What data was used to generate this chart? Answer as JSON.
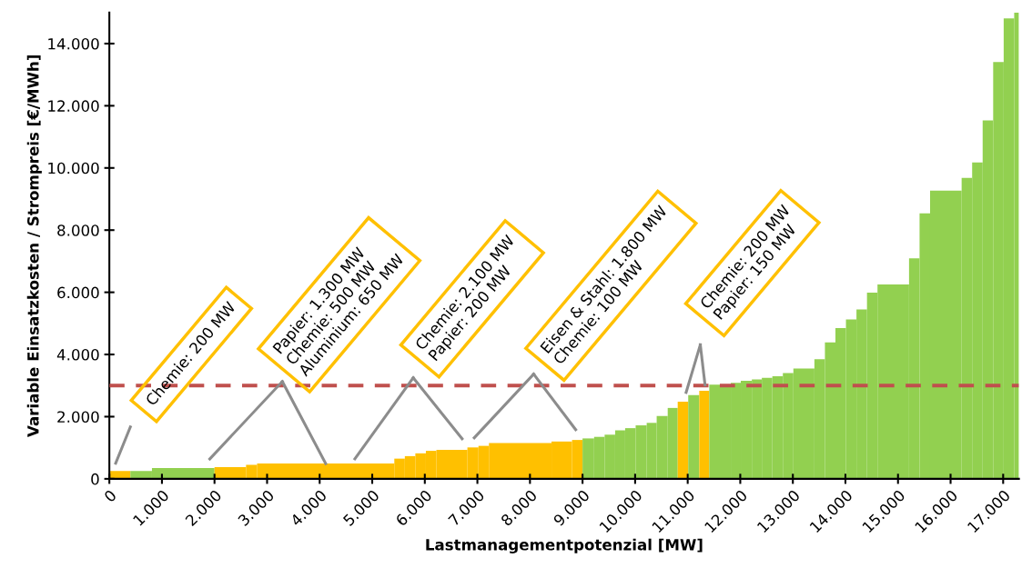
{
  "chart_data": {
    "type": "bar",
    "xlabel": "Lastmanagementpotenzial [MW]",
    "ylabel": "Variable Einsatzkosten / Strompreis [€/MWh]",
    "x": [
      200,
      605,
      1405,
      2300,
      2705,
      4115,
      5520,
      5720,
      5920,
      6120,
      6515,
      6915,
      7120,
      7815,
      8605,
      8900,
      9110,
      9320,
      9520,
      9715,
      9910,
      10115,
      10315,
      10515,
      10715,
      10910,
      11115,
      11315,
      11615,
      11915,
      12115,
      12315,
      12510,
      12710,
      12910,
      13210,
      13510,
      13710,
      13910,
      14110,
      14310,
      14510,
      14910,
      15310,
      15510,
      15910,
      16310,
      16510,
      16710,
      16910,
      17110,
      17255
    ],
    "values": [
      250,
      250,
      350,
      380,
      450,
      490,
      650,
      730,
      820,
      900,
      930,
      1010,
      1060,
      1150,
      1200,
      1250,
      1300,
      1350,
      1420,
      1560,
      1630,
      1720,
      1800,
      2020,
      2280,
      2480,
      2690,
      2830,
      3030,
      3090,
      3150,
      3200,
      3250,
      3300,
      3400,
      3550,
      3850,
      4390,
      4850,
      5130,
      5450,
      5990,
      6250,
      7090,
      8540,
      9270,
      9680,
      10180,
      11530,
      13410,
      14810,
      15000
    ],
    "colors": [
      "#ffc000",
      "#92d050",
      "#92d050",
      "#ffc000",
      "#ffc000",
      "#ffc000",
      "#ffc000",
      "#ffc000",
      "#ffc000",
      "#ffc000",
      "#ffc000",
      "#ffc000",
      "#ffc000",
      "#ffc000",
      "#ffc000",
      "#ffc000",
      "#92d050",
      "#92d050",
      "#92d050",
      "#92d050",
      "#92d050",
      "#92d050",
      "#92d050",
      "#92d050",
      "#92d050",
      "#ffc000",
      "#92d050",
      "#ffc000",
      "#92d050",
      "#92d050",
      "#92d050",
      "#92d050",
      "#92d050",
      "#92d050",
      "#92d050",
      "#92d050",
      "#92d050",
      "#92d050",
      "#92d050",
      "#92d050",
      "#92d050",
      "#92d050",
      "#92d050",
      "#92d050",
      "#92d050",
      "#92d050",
      "#92d050",
      "#92d050",
      "#92d050",
      "#92d050",
      "#92d050",
      "#92d050"
    ],
    "xlim": [
      0,
      17300
    ],
    "xticks": [
      0,
      {
        "value": 1000,
        "label": "1.000"
      },
      {
        "value": 2000,
        "label": "2.000"
      },
      {
        "value": 3000,
        "label": "3.000"
      },
      {
        "value": 4000,
        "label": "4.000"
      },
      {
        "value": 5000,
        "label": "5.000"
      },
      {
        "value": 6000,
        "label": "6.000"
      },
      {
        "value": 7000,
        "label": "7.000"
      },
      {
        "value": 8000,
        "label": "8.000"
      },
      {
        "value": 9000,
        "label": "9.000"
      },
      {
        "value": 10000,
        "label": "10.000"
      },
      {
        "value": 11000,
        "label": "11.000"
      },
      {
        "value": 12000,
        "label": "12.000"
      },
      {
        "value": 13000,
        "label": "13.000"
      },
      {
        "value": 14000,
        "label": "14.000"
      },
      {
        "value": 15000,
        "label": "15.000"
      },
      {
        "value": 16000,
        "label": "16.000"
      },
      {
        "value": 17000,
        "label": "17.000"
      }
    ],
    "ylim": [
      0,
      15000
    ],
    "yticks": [
      0,
      {
        "value": 2000,
        "label": "2.000"
      },
      {
        "value": 4000,
        "label": "4.000"
      },
      {
        "value": 6000,
        "label": "6.000"
      },
      {
        "value": 8000,
        "label": "8.000"
      },
      {
        "value": 10000,
        "label": "10.000"
      },
      {
        "value": 12000,
        "label": "12.000"
      },
      {
        "value": 14000,
        "label": "14.000"
      }
    ],
    "ref_lines": [
      {
        "axis": "y",
        "value": 3000,
        "color": "#c0504d",
        "line_style": "dashed"
      }
    ],
    "annotations": [
      "Chemie: 200 MW",
      {
        "text": "Papier: 1.300 MW\nChemie: 500 MW\nAluminium: 650 MW",
        "x": 4115,
        "y": 490
      },
      "Chemie: 2.100 MW\nPapier: 200 MW",
      "Eisen & Stahl: 1.800 MW\nChemie: 100 MW",
      "Chemie: 200 MW\nPapier: 150 MW"
    ],
    "grid": false,
    "legend": false
  }
}
